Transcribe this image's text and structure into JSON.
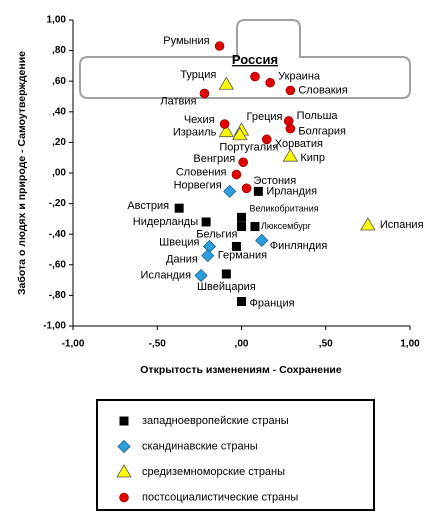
{
  "chart_data": {
    "type": "scatter",
    "xlabel": "Открытость изменениям - Сохранение",
    "ylabel": "Забота о людях и природе - Самоутверждение",
    "xlim": [
      -1,
      1
    ],
    "ylim": [
      -1,
      1
    ],
    "xticks": [
      {
        "value": -1,
        "label": "-1,00"
      },
      {
        "value": -0.5,
        "label": "-,50"
      },
      {
        "value": 0,
        "label": ",00"
      },
      {
        "value": 0.5,
        "label": ",50"
      },
      {
        "value": 1,
        "label": "1,00"
      }
    ],
    "yticks": [
      {
        "value": 1,
        "label": "1,00"
      },
      {
        "value": 0.8,
        "label": ",80"
      },
      {
        "value": 0.6,
        "label": ",60"
      },
      {
        "value": 0.4,
        "label": ",40"
      },
      {
        "value": 0.2,
        "label": ",20"
      },
      {
        "value": 0,
        "label": ",00"
      },
      {
        "value": -0.2,
        "label": "-,20"
      },
      {
        "value": -0.4,
        "label": "-,40"
      },
      {
        "value": -0.6,
        "label": "-,60"
      },
      {
        "value": -0.8,
        "label": "-,80"
      },
      {
        "value": -1,
        "label": "-1,00"
      }
    ],
    "series": [
      {
        "name": "западноевропейские страны",
        "color": "#000000",
        "marker": "square",
        "labels": [
          "Австрия",
          "Ирландия",
          "Нидерланды",
          "Великобритания",
          "Бельгия",
          "Люксембург",
          "Германия",
          "Швейцария",
          "Франция"
        ],
        "x": [
          -0.37,
          0.1,
          -0.21,
          0.0,
          0.0,
          0.08,
          -0.03,
          -0.09,
          0.0
        ],
        "values": [
          -0.23,
          -0.12,
          -0.32,
          -0.29,
          -0.35,
          -0.35,
          -0.48,
          -0.66,
          -0.84
        ]
      },
      {
        "name": "скандинавские страны",
        "color": "#2b9fe0",
        "marker": "diamond",
        "labels": [
          "Норвегия",
          "Швеция",
          "Дания",
          "Финляндия",
          "Исландия"
        ],
        "x": [
          -0.07,
          -0.19,
          -0.2,
          0.12,
          -0.24
        ],
        "values": [
          -0.12,
          -0.48,
          -0.54,
          -0.44,
          -0.67
        ]
      },
      {
        "name": "средиземноморские страны",
        "color": "#ffff00",
        "marker": "triangle",
        "labels": [
          "Турция",
          "Греция",
          "Израиль",
          "Португалия",
          "Кипр",
          "Испания"
        ],
        "x": [
          -0.09,
          0.0,
          -0.09,
          -0.01,
          0.29,
          0.75
        ],
        "values": [
          0.58,
          0.28,
          0.27,
          0.25,
          0.11,
          -0.34
        ]
      },
      {
        "name": "постсоциалистические страны",
        "color": "#e00000",
        "marker": "circle",
        "labels": [
          "Румыния",
          "Россия",
          "Украина",
          "Словакия",
          "Латвия",
          "Чехия",
          "Польша",
          "Болгария",
          "Хорватия",
          "Венгрия",
          "Словения",
          "Эстония"
        ],
        "x": [
          -0.13,
          0.08,
          0.17,
          0.29,
          -0.22,
          -0.1,
          0.28,
          0.29,
          0.15,
          0.01,
          -0.03,
          0.03
        ],
        "values": [
          0.83,
          0.63,
          0.59,
          0.54,
          0.52,
          0.32,
          0.34,
          0.29,
          0.22,
          0.07,
          -0.01,
          -0.1
        ]
      }
    ]
  }
}
